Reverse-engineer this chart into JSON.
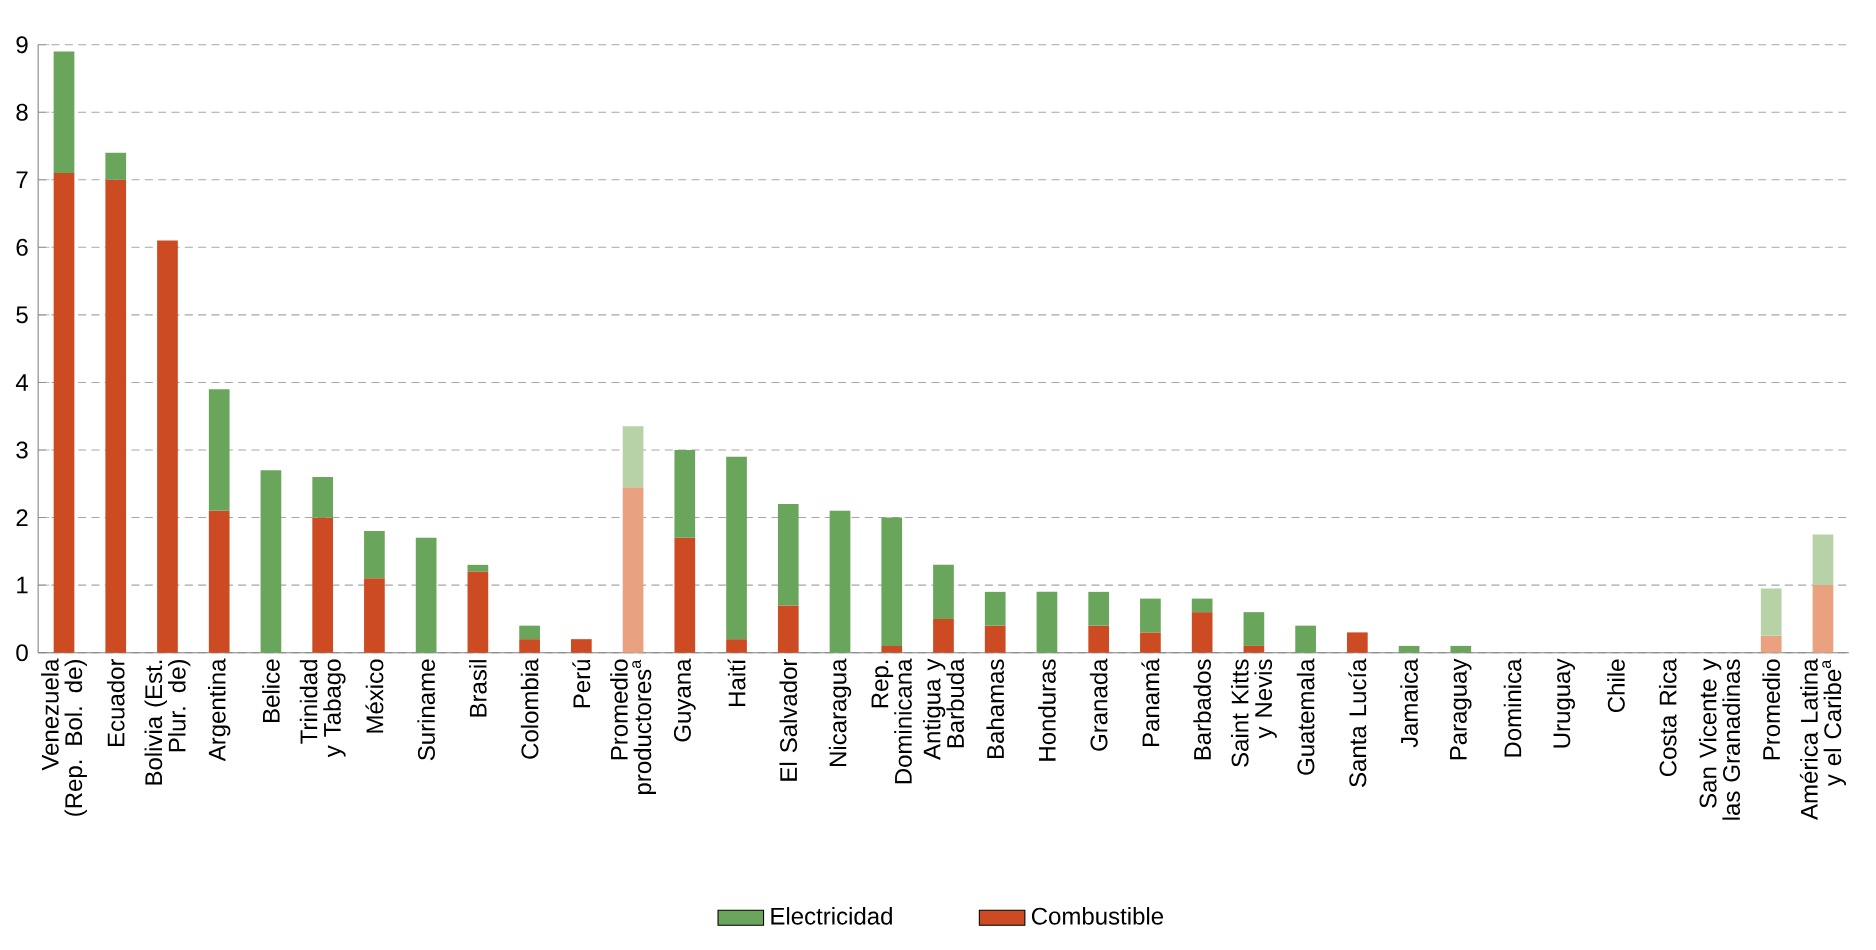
{
  "chart_data": {
    "type": "bar",
    "stacked": true,
    "categories": [
      "Venezuela (Rep. Bol. de)",
      "Ecuador",
      "Bolivia (Est. Plur. de)",
      "Argentina",
      "Belice",
      "Trinidad y Tabago",
      "México",
      "Suriname",
      "Brasil",
      "Colombia",
      "Perú",
      "Promedio productores$^{a}$",
      "Guyana",
      "Haití",
      "El Salvador",
      "Nicaragua",
      "Rep. Dominicana",
      "Antigua y Barbuda",
      "Bahamas",
      "Honduras",
      "Granada",
      "Panamá",
      "Barbados",
      "Saint Kitts y Nevis",
      "Guatemala",
      "Santa Lucía",
      "Jamaica",
      "Paraguay",
      "Dominica",
      "Uruguay",
      "Chile",
      "Costa Rica",
      "San Vicente y las Granadinas",
      "Promedio",
      "América Latina y el Caribe$^{a}$"
    ],
    "series": [
      {
        "name": "Combustible",
        "color": "#cc4b22",
        "colors": [
          "#cc4b22",
          "#cc4b22",
          "#cc4b22",
          "#cc4b22",
          "#cc4b22",
          "#cc4b22",
          "#cc4b22",
          "#cc4b22",
          "#cc4b22",
          "#cc4b22",
          "#cc4b22",
          "#e9a17f",
          "#cc4b22",
          "#cc4b22",
          "#cc4b22",
          "#cc4b22",
          "#cc4b22",
          "#cc4b22",
          "#cc4b22",
          "#cc4b22",
          "#cc4b22",
          "#cc4b22",
          "#cc4b22",
          "#cc4b22",
          "#cc4b22",
          "#cc4b22",
          "#cc4b22",
          "#cc4b22",
          "#cc4b22",
          "#cc4b22",
          "#cc4b22",
          "#cc4b22",
          "#cc4b22",
          "#e9a17f",
          "#e9a17f"
        ],
        "values": [
          7.1,
          7.0,
          6.1,
          2.1,
          0,
          2.0,
          1.1,
          0,
          1.2,
          0.2,
          0.2,
          2.45,
          1.7,
          0.2,
          0.7,
          0,
          0.1,
          0.5,
          0.4,
          0,
          0.4,
          0.3,
          0.6,
          0.1,
          0,
          0.3,
          0,
          0,
          0,
          0,
          0,
          0,
          0,
          0.25,
          1.0
        ]
      },
      {
        "name": "Electricidad",
        "color": "#6aa55c",
        "colors": [
          "#6aa55c",
          "#6aa55c",
          "#6aa55c",
          "#6aa55c",
          "#6aa55c",
          "#6aa55c",
          "#6aa55c",
          "#6aa55c",
          "#6aa55c",
          "#6aa55c",
          "#6aa55c",
          "#b8d2a8",
          "#6aa55c",
          "#6aa55c",
          "#6aa55c",
          "#6aa55c",
          "#6aa55c",
          "#6aa55c",
          "#6aa55c",
          "#6aa55c",
          "#6aa55c",
          "#6aa55c",
          "#6aa55c",
          "#6aa55c",
          "#6aa55c",
          "#6aa55c",
          "#6aa55c",
          "#6aa55c",
          "#6aa55c",
          "#6aa55c",
          "#6aa55c",
          "#6aa55c",
          "#6aa55c",
          "#b8d2a8",
          "#b8d2a8"
        ],
        "values": [
          1.8,
          0.4,
          0,
          1.8,
          2.7,
          0.6,
          0.7,
          1.7,
          0.1,
          0.2,
          0,
          0.9,
          1.3,
          2.7,
          1.5,
          2.1,
          1.9,
          0.8,
          0.5,
          0.9,
          0.5,
          0.5,
          0.2,
          0.5,
          0.4,
          0,
          0.1,
          0.1,
          0,
          0,
          0,
          0,
          0,
          0.7,
          0.75
        ]
      }
    ],
    "ylim": [
      0,
      9
    ],
    "yticks": [
      0,
      1,
      2,
      3,
      4,
      5,
      6,
      7,
      8,
      9
    ],
    "grid": "y",
    "legend": "bottom"
  }
}
